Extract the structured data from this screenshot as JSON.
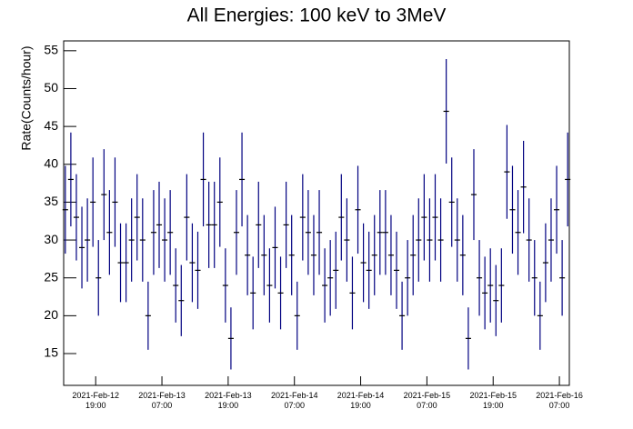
{
  "chart_data": {
    "type": "errorbar",
    "title": "All Energies:  100 keV to 3MeV",
    "y_label": "Rate(Counts/hour)",
    "color": "#000080",
    "x": [
      13.5,
      14.5,
      15.5,
      16.5,
      17.5,
      18.5,
      19.5,
      20.5,
      21.5,
      22.5,
      23.5,
      24.5,
      25.5,
      26.5,
      27.5,
      28.5,
      29.5,
      30.5,
      31.5,
      32.5,
      33.5,
      34.5,
      35.5,
      36.5,
      37.5,
      38.5,
      39.5,
      40.5,
      41.5,
      42.5,
      43.5,
      44.5,
      45.5,
      46.5,
      47.5,
      48.5,
      49.5,
      50.5,
      51.5,
      52.5,
      53.5,
      54.5,
      55.5,
      56.5,
      57.5,
      58.5,
      59.5,
      60.5,
      61.5,
      62.5,
      63.5,
      64.5,
      65.5,
      66.5,
      67.5,
      68.5,
      69.5,
      70.5,
      71.5,
      72.5,
      73.5,
      74.5,
      75.5,
      76.5,
      77.5,
      78.5,
      79.5,
      80.5,
      81.5,
      82.5,
      83.5,
      84.5,
      85.5,
      86.5,
      87.5,
      88.5,
      89.5,
      90.5,
      91.5,
      92.5,
      93.5,
      94.5,
      95.5,
      96.5,
      97.5,
      98.5,
      99.5,
      100.5,
      101.5,
      102.5,
      103.5,
      104.5
    ],
    "values": [
      34,
      38,
      33,
      29,
      30,
      35,
      25,
      36,
      31,
      35,
      27,
      27,
      30,
      33,
      30,
      20,
      31,
      32,
      30,
      31,
      24,
      22,
      33,
      27,
      26,
      38,
      32,
      32,
      35,
      24,
      17,
      31,
      38,
      28,
      23,
      32,
      28,
      24,
      29,
      23,
      32,
      28,
      20,
      33,
      31,
      28,
      31,
      24,
      25,
      26,
      33,
      30,
      23,
      34,
      27,
      26,
      28,
      31,
      31,
      28,
      26,
      20,
      25,
      28,
      30,
      33,
      30,
      33,
      30,
      47,
      35,
      30,
      28,
      17,
      36,
      25,
      23,
      24,
      22,
      24,
      39,
      34,
      31,
      37,
      30,
      25,
      20,
      27,
      30,
      34,
      25,
      38
    ],
    "errors": [
      5.8,
      6.2,
      5.7,
      5.4,
      5.5,
      5.9,
      5,
      6,
      5.6,
      5.9,
      5.2,
      5.2,
      5.5,
      5.7,
      5.5,
      4.5,
      5.6,
      5.7,
      5.5,
      5.6,
      4.9,
      4.7,
      5.7,
      5.2,
      5.1,
      6.2,
      5.7,
      5.7,
      5.9,
      4.9,
      4.1,
      5.6,
      6.2,
      5.3,
      4.8,
      5.7,
      5.3,
      4.9,
      5.4,
      4.8,
      5.7,
      5.3,
      4.5,
      5.7,
      5.6,
      5.3,
      5.6,
      4.9,
      5,
      5.1,
      5.7,
      5.5,
      4.8,
      5.8,
      5.2,
      5.1,
      5.3,
      5.6,
      5.6,
      5.3,
      5.1,
      4.5,
      5,
      5.3,
      5.5,
      5.7,
      5.5,
      5.7,
      5.5,
      6.9,
      5.9,
      5.5,
      5.3,
      4.1,
      6,
      5,
      4.8,
      4.9,
      4.7,
      4.9,
      6.2,
      5.8,
      5.6,
      6.1,
      5.5,
      5,
      4.5,
      5.2,
      5.5,
      5.8,
      5,
      6.2
    ],
    "xlim": [
      13.2,
      104.8
    ],
    "xticks": [
      {
        "value": 19,
        "label": "2021-Feb-12 19:00"
      },
      {
        "value": 31,
        "label": "2021-Feb-13 07:00"
      },
      {
        "value": 43,
        "label": "2021-Feb-13 19:00"
      },
      {
        "value": 55,
        "label": "2021-Feb-14 07:00"
      },
      {
        "value": 67,
        "label": "2021-Feb-14 19:00"
      },
      {
        "value": 79,
        "label": "2021-Feb-15 07:00"
      },
      {
        "value": 91,
        "label": "2021-Feb-15 19:00"
      },
      {
        "value": 103,
        "label": "2021-Feb-16 07:00"
      }
    ],
    "ylim": [
      10.8,
      56.3
    ],
    "yticks": [
      15,
      20,
      25,
      30,
      35,
      40,
      45,
      50,
      55
    ]
  }
}
